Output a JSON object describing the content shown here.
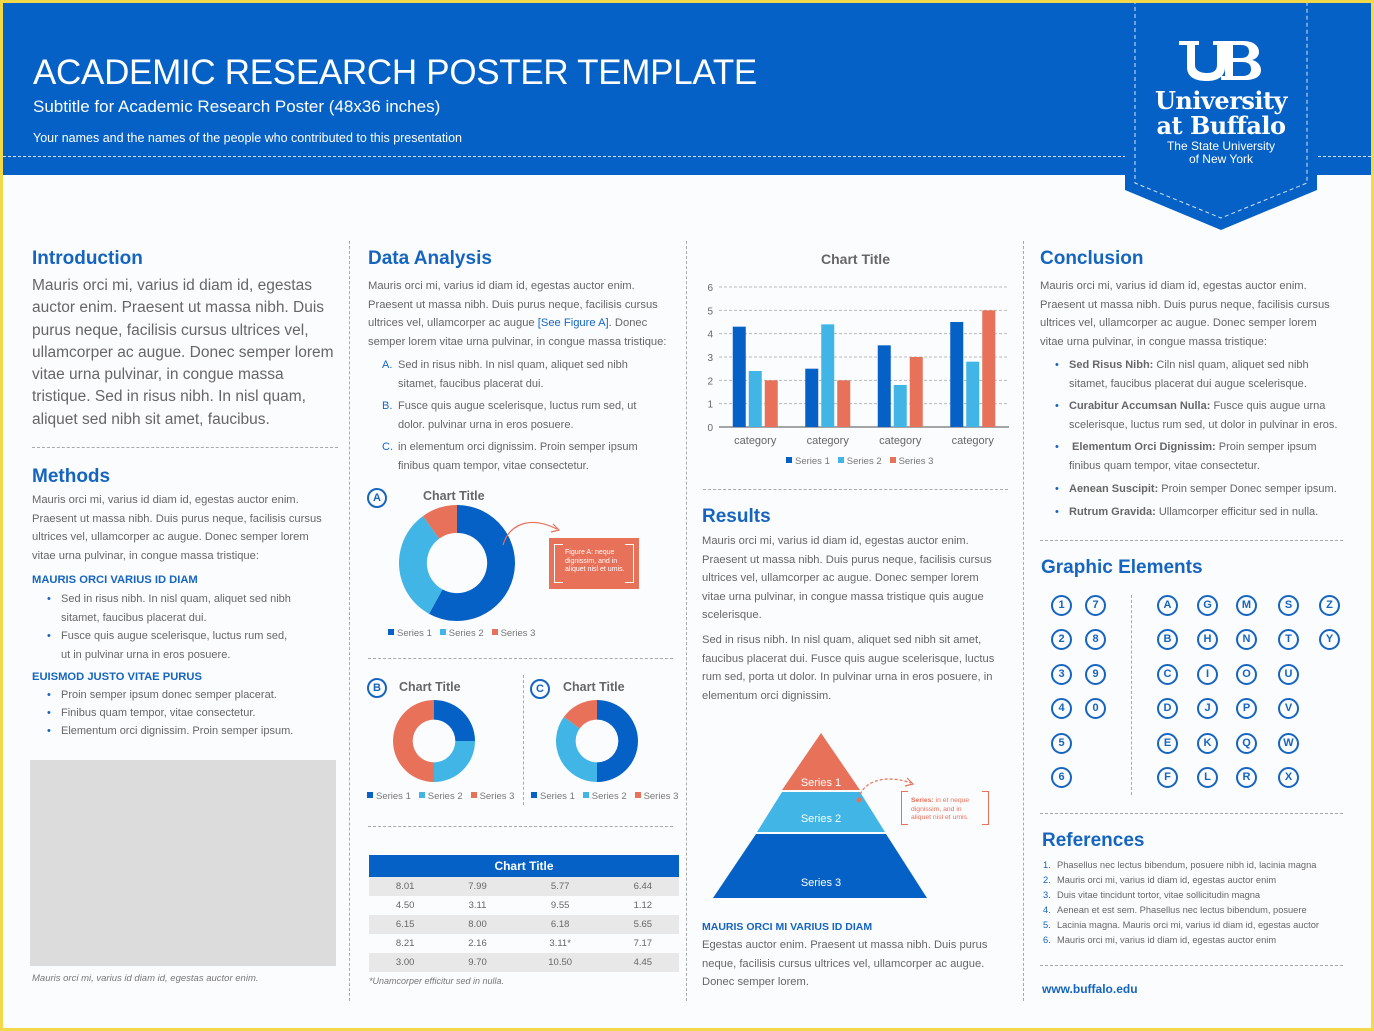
{
  "header": {
    "title": "ACADEMIC RESEARCH POSTER TEMPLATE",
    "subtitle": "Subtitle for Academic Research Poster (48x36 inches)",
    "authors": "Your names and the names of the people who contributed to this presentation"
  },
  "logo": {
    "mark": "UB",
    "line1": "University",
    "line2": "at Buffalo",
    "line3": "The State University",
    "line4": "of New York"
  },
  "introduction": {
    "heading": "Introduction",
    "lines": [
      "Mauris orci mi, varius id diam id, egestas",
      "auctor enim. Praesent ut massa nibh. Duis",
      "purus neque, facilisis cursus ultrices vel,",
      "ullamcorper ac augue. Donec semper lorem",
      "vitae urna pulvinar, in congue massa",
      "tristique. Sed in risus nibh. In nisl quam,",
      "aliquet sed nibh sit amet, faucibus."
    ]
  },
  "methods": {
    "heading": "Methods",
    "lines": [
      "Mauris orci mi, varius id diam id, egestas auctor enim.",
      "Praesent ut massa nibh. Duis purus neque, facilisis cursus",
      "ultrices vel, ullamcorper ac augue. Donec semper lorem",
      "vitae urna pulvinar, in congue massa tristique:"
    ],
    "sub1": "MAURIS ORCI VARIUS ID DIAM",
    "bullets1": [
      [
        "Sed in risus nibh. In nisl quam, aliquet sed nibh",
        "sitamet, faucibus placerat dui."
      ],
      [
        "Fusce quis augue scelerisque, luctus rum sed,",
        "ut in pulvinar urna in eros posuere."
      ]
    ],
    "sub2": "EUISMOD JUSTO VITAE PURUS",
    "bullets2": [
      "Proin semper ipsum donec semper placerat.",
      "Finibus quam tempor, vitae consectetur.",
      "Elementum orci dignissim. Proin semper ipsum."
    ],
    "caption": "Mauris orci mi, varius id diam id, egestas auctor enim."
  },
  "data_analysis": {
    "heading": "Data Analysis",
    "lines": [
      "Mauris orci mi, varius id diam id, egestas auctor enim.",
      "Praesent ut massa nibh. Duis purus neque, facilisis cursus"
    ],
    "line3a": "ultrices vel, ullamcorper ac augue ",
    "line3link": "[See Figure A]",
    "line3b": ". Donec",
    "line4": "semper lorem vitae urna pulvinar, in congue massa tristique:",
    "items": [
      {
        "marker": "A.",
        "lines": [
          "Sed in risus nibh. In nisl quam, aliquet sed nibh",
          "sitamet, faucibus placerat dui."
        ]
      },
      {
        "marker": "B.",
        "lines": [
          "Fusce quis augue scelerisque, luctus rum sed, ut",
          "dolor. pulvinar urna in eros posuere."
        ]
      },
      {
        "marker": "C.",
        "lines": [
          "in elementum orci dignissim. Proin semper ipsum",
          "finibus quam tempor, vitae consectetur."
        ]
      }
    ],
    "figA": {
      "label": "A",
      "callout": [
        "Figure A: neque",
        "dignissim, and in",
        "aliquet nisl et umis."
      ]
    },
    "figB": {
      "label": "B"
    },
    "figC": {
      "label": "C"
    },
    "table_note": "*Unamcorper efficitur sed in nulla."
  },
  "results": {
    "heading": "Results",
    "p1": [
      "Mauris orci mi, varius id diam id, egestas auctor enim.",
      "Praesent ut massa nibh. Duis purus neque, facilisis cursus",
      "ultrices vel, ullamcorper ac augue. Donec semper lorem",
      "vitae urna pulvinar, in congue massa tristique quis augue",
      "scelerisque."
    ],
    "p2": [
      "Sed in risus nibh. In nisl quam, aliquet sed nibh sit amet,",
      "faucibus placerat dui. Fusce quis augue scelerisque, luctus",
      "rum sed, porta ut dolor. In pulvinar urna in eros posuere, in",
      "elementum orci dignissim."
    ],
    "pyramid_callout": [
      "Series: in et neque",
      "dignissim, and in",
      "aliquet nisl et umis."
    ],
    "pyramid_callout_bold": "Series:",
    "sub": "MAURIS ORCI MI VARIUS ID DIAM",
    "p3": [
      "Egestas auctor enim. Praesent ut massa nibh. Duis purus",
      "neque, facilisis cursus ultrices vel, ullamcorper ac augue.",
      "Donec semper lorem."
    ]
  },
  "conclusion": {
    "heading": "Conclusion",
    "lines": [
      "Mauris orci mi, varius id diam id, egestas auctor enim.",
      "Praesent ut massa nibh. Duis purus neque, facilisis cursus",
      "ultrices vel, ullamcorper ac augue. Donec semper lorem",
      "vitae urna pulvinar, in congue massa tristique:"
    ],
    "bullets": [
      {
        "bold": "Sed Risus Nibh:",
        "text": " Ciln nisl quam, aliquet sed nibh",
        "line2": "sitamet, faucibus placerat dui augue scelerisque."
      },
      {
        "bold": "Curabitur Accumsan Nulla:",
        "text": " Fusce quis augue urna",
        "line2": "scelerisque, luctus rum sed, ut dolor in pulvinar in eros."
      },
      {
        "bold": " Elementum Orci Dignissim:",
        "text": " Proin semper ipsum",
        "line2": "finibus quam tempor, vitae consectetur."
      },
      {
        "bold": "Aenean Suscipit:",
        "text": " Proin semper Donec semper ipsum.",
        "line2": ""
      },
      {
        "bold": "Rutrum Gravida:",
        "text": " Ullamcorper efficitur sed in nulla.",
        "line2": ""
      }
    ]
  },
  "graphic_elements": {
    "heading": "Graphic Elements",
    "numbers": [
      "1",
      "2",
      "3",
      "4",
      "5",
      "6",
      "7",
      "8",
      "9",
      "0"
    ],
    "letters": [
      "A",
      "B",
      "C",
      "D",
      "E",
      "F",
      "G",
      "H",
      "I",
      "J",
      "K",
      "L",
      "M",
      "N",
      "O",
      "P",
      "Q",
      "R",
      "S",
      "T",
      "U",
      "V",
      "W",
      "X",
      "Z",
      "Y"
    ]
  },
  "references": {
    "heading": "References",
    "items": [
      "Phasellus nec lectus bibendum, posuere nibh id, lacinia magna",
      "Mauris orci mi, varius id diam id, egestas auctor enim",
      "Duis vitae tincidunt tortor, vitae sollicitudin magna",
      "Aenean et est sem. Phasellus nec lectus bibendum, posuere",
      "Lacinia magna. Mauris orci mi, varius id diam id, egestas auctor",
      "Mauris orci mi, varius id diam id, egestas auctor enim"
    ],
    "website": "www.buffalo.edu"
  },
  "colors": {
    "dark_blue": "#0561c6",
    "light_blue": "#41b6e6",
    "orange": "#e8715a"
  },
  "chart_data": [
    {
      "type": "bar",
      "title": "Chart Title",
      "categories": [
        "category",
        "category",
        "category",
        "category"
      ],
      "series": [
        {
          "name": "Series 1",
          "values": [
            4.3,
            2.5,
            3.5,
            4.5
          ],
          "color": "#0561c6"
        },
        {
          "name": "Series 2",
          "values": [
            2.4,
            4.4,
            1.8,
            2.8
          ],
          "color": "#41b6e6"
        },
        {
          "name": "Series 3",
          "values": [
            2,
            2,
            3,
            5
          ],
          "color": "#e8715a"
        }
      ],
      "ylim": [
        0,
        6
      ],
      "yticks": [
        "0",
        "1",
        "2",
        "3",
        "4",
        "5",
        "6"
      ],
      "grid": true,
      "legend": "bottom"
    },
    {
      "type": "pie",
      "title": "Chart Title",
      "labels": [
        "Series 1",
        "Series 2",
        "Series 3"
      ],
      "values": [
        58,
        32,
        10
      ],
      "donut": true,
      "legend": "bottom"
    },
    {
      "type": "pie",
      "title": "Chart Title",
      "labels": [
        "Series 1",
        "Series 2",
        "Series 3"
      ],
      "values": [
        25,
        25,
        50
      ],
      "donut": true,
      "legend": "bottom"
    },
    {
      "type": "pie",
      "title": "Chart Title",
      "labels": [
        "Series 1",
        "Series 2",
        "Series 3"
      ],
      "values": [
        50,
        35,
        15
      ],
      "donut": true,
      "legend": "bottom"
    },
    {
      "type": "table",
      "title": "Chart Title",
      "rows": [
        [
          "8.01",
          "7.99",
          "5.77",
          "6.44"
        ],
        [
          "4.50",
          "3.11",
          "9.55",
          "1.12"
        ],
        [
          "6.15",
          "8.00",
          "6.18",
          "5.65"
        ],
        [
          "8.21",
          "2.16",
          "3.11*",
          "7.17"
        ],
        [
          "3.00",
          "9.70",
          "10.50",
          "4.45"
        ]
      ]
    },
    {
      "type": "pyramid",
      "levels": [
        "Series 1",
        "Series 2",
        "Series 3"
      ]
    }
  ]
}
